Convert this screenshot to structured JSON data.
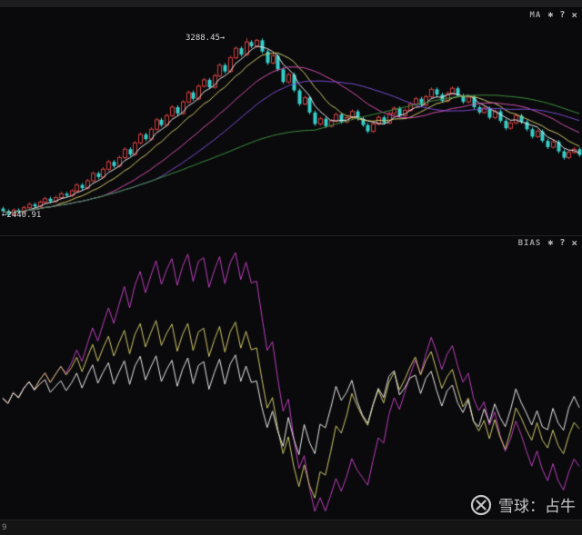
{
  "ma_panel": {
    "indicator_label": "MA",
    "gear_icon": "✱",
    "help_label": "?",
    "close_label": "×",
    "peak_label": "3288.45→",
    "low_label": "←2440.91"
  },
  "bias_panel": {
    "indicator_label": "BIAS",
    "gear_icon": "✱",
    "help_label": "?",
    "close_label": "×"
  },
  "watermark": {
    "text": "雪球：占牛"
  },
  "bottom_bar": {
    "axis_label": "9"
  },
  "colors": {
    "background": "#0a0a0c",
    "up_candle": "#cf4040",
    "down_candle": "#36cfc9",
    "header_text": "#9a9aa0",
    "label_text": "#d8d8d8"
  },
  "chart_data": [
    {
      "type": "candlestick",
      "title": "index price with moving averages",
      "ylim": [
        2420,
        3310
      ],
      "peak_annotation": 3288.45,
      "low_annotation": 2440.91,
      "up_color": "#cf4040",
      "down_color": "#36cfc9",
      "ma_periods": [
        5,
        10,
        20,
        30,
        60
      ],
      "ma_colors": [
        "#e8e8e8",
        "#cfc76a",
        "#d44fae",
        "#7c4bd0",
        "#3f8f3f"
      ],
      "ohlc": [
        [
          2478,
          2487,
          2456,
          2465
        ],
        [
          2465,
          2474,
          2440.91,
          2448
        ],
        [
          2448,
          2479,
          2441,
          2470
        ],
        [
          2470,
          2479,
          2453,
          2462
        ],
        [
          2462,
          2491,
          2455,
          2482
        ],
        [
          2482,
          2507,
          2475,
          2498
        ],
        [
          2498,
          2507,
          2479,
          2488
        ],
        [
          2488,
          2517,
          2481,
          2508
        ],
        [
          2508,
          2534,
          2501,
          2525
        ],
        [
          2525,
          2534,
          2503,
          2512
        ],
        [
          2512,
          2539,
          2505,
          2530
        ],
        [
          2530,
          2557,
          2523,
          2548
        ],
        [
          2548,
          2557,
          2531,
          2540
        ],
        [
          2540,
          2571,
          2533,
          2562
        ],
        [
          2562,
          2599,
          2555,
          2590
        ],
        [
          2590,
          2599,
          2566,
          2575
        ],
        [
          2575,
          2619,
          2568,
          2610
        ],
        [
          2610,
          2654,
          2603,
          2645
        ],
        [
          2645,
          2654,
          2619,
          2628
        ],
        [
          2628,
          2674,
          2621,
          2665
        ],
        [
          2665,
          2709,
          2658,
          2700
        ],
        [
          2700,
          2709,
          2671,
          2680
        ],
        [
          2680,
          2729,
          2673,
          2720
        ],
        [
          2720,
          2769,
          2713,
          2760
        ],
        [
          2760,
          2769,
          2726,
          2735
        ],
        [
          2735,
          2799,
          2728,
          2790
        ],
        [
          2790,
          2839,
          2783,
          2830
        ],
        [
          2830,
          2839,
          2799,
          2808
        ],
        [
          2808,
          2864,
          2801,
          2855
        ],
        [
          2855,
          2909,
          2848,
          2900
        ],
        [
          2900,
          2909,
          2866,
          2875
        ],
        [
          2875,
          2929,
          2868,
          2920
        ],
        [
          2920,
          2969,
          2913,
          2960
        ],
        [
          2960,
          2969,
          2921,
          2930
        ],
        [
          2930,
          2994,
          2923,
          2985
        ],
        [
          2985,
          3039,
          2978,
          3030
        ],
        [
          3030,
          3039,
          2991,
          3000
        ],
        [
          3000,
          3069,
          2993,
          3060
        ],
        [
          3060,
          3099,
          3053,
          3090
        ],
        [
          3090,
          3099,
          3046,
          3055
        ],
        [
          3055,
          3119,
          3048,
          3110
        ],
        [
          3110,
          3169,
          3103,
          3160
        ],
        [
          3160,
          3169,
          3121,
          3130
        ],
        [
          3130,
          3204,
          3123,
          3195
        ],
        [
          3195,
          3249,
          3188,
          3240
        ],
        [
          3240,
          3249,
          3201,
          3210
        ],
        [
          3210,
          3288.45,
          3203,
          3270
        ],
        [
          3270,
          3279,
          3241,
          3250
        ],
        [
          3250,
          3285,
          3243,
          3278
        ],
        [
          3278,
          3287,
          3216,
          3225
        ],
        [
          3225,
          3234,
          3161,
          3170
        ],
        [
          3170,
          3214,
          3163,
          3205
        ],
        [
          3205,
          3214,
          3131,
          3140
        ],
        [
          3140,
          3149,
          3071,
          3080
        ],
        [
          3080,
          3124,
          3073,
          3115
        ],
        [
          3115,
          3124,
          3031,
          3040
        ],
        [
          3040,
          3049,
          2966,
          2975
        ],
        [
          2975,
          3014,
          2968,
          3005
        ],
        [
          3005,
          3014,
          2926,
          2935
        ],
        [
          2935,
          2944,
          2871,
          2880
        ],
        [
          2880,
          2914,
          2873,
          2905
        ],
        [
          2905,
          2914,
          2861,
          2870
        ],
        [
          2870,
          2904,
          2863,
          2895
        ],
        [
          2895,
          2934,
          2888,
          2925
        ],
        [
          2925,
          2934,
          2881,
          2890
        ],
        [
          2890,
          2919,
          2883,
          2910
        ],
        [
          2910,
          2949,
          2903,
          2940
        ],
        [
          2940,
          2949,
          2896,
          2905
        ],
        [
          2905,
          2914,
          2866,
          2875
        ],
        [
          2875,
          2884,
          2836,
          2845
        ],
        [
          2845,
          2889,
          2838,
          2880
        ],
        [
          2880,
          2921,
          2873,
          2912
        ],
        [
          2912,
          2921,
          2876,
          2885
        ],
        [
          2885,
          2939,
          2878,
          2930
        ],
        [
          2930,
          2964,
          2923,
          2955
        ],
        [
          2955,
          2964,
          2911,
          2920
        ],
        [
          2920,
          2954,
          2913,
          2945
        ],
        [
          2945,
          2984,
          2938,
          2975
        ],
        [
          2975,
          3009,
          2968,
          3000
        ],
        [
          3000,
          3009,
          2961,
          2970
        ],
        [
          2970,
          3019,
          2963,
          3010
        ],
        [
          3010,
          3054,
          3003,
          3045
        ],
        [
          3045,
          3054,
          3011,
          3020
        ],
        [
          3020,
          3029,
          2981,
          2990
        ],
        [
          2990,
          3034,
          2983,
          3025
        ],
        [
          3025,
          3059,
          3018,
          3050
        ],
        [
          3050,
          3059,
          3006,
          3015
        ],
        [
          3015,
          3024,
          2976,
          2985
        ],
        [
          2985,
          3017,
          2978,
          3008
        ],
        [
          3008,
          3017,
          2951,
          2960
        ],
        [
          2960,
          2969,
          2926,
          2935
        ],
        [
          2935,
          2964,
          2928,
          2955
        ],
        [
          2955,
          2964,
          2901,
          2910
        ],
        [
          2910,
          2949,
          2903,
          2940
        ],
        [
          2940,
          2949,
          2886,
          2895
        ],
        [
          2895,
          2904,
          2851,
          2860
        ],
        [
          2860,
          2894,
          2853,
          2885
        ],
        [
          2885,
          2929,
          2878,
          2920
        ],
        [
          2920,
          2929,
          2881,
          2890
        ],
        [
          2890,
          2899,
          2846,
          2855
        ],
        [
          2855,
          2864,
          2811,
          2820
        ],
        [
          2820,
          2854,
          2813,
          2845
        ],
        [
          2845,
          2854,
          2791,
          2800
        ],
        [
          2800,
          2809,
          2761,
          2770
        ],
        [
          2770,
          2804,
          2763,
          2795
        ],
        [
          2795,
          2804,
          2741,
          2750
        ],
        [
          2750,
          2759,
          2711,
          2720
        ],
        [
          2720,
          2754,
          2713,
          2745
        ],
        [
          2745,
          2769,
          2738,
          2760
        ],
        [
          2760,
          2769,
          2724,
          2733
        ]
      ]
    },
    {
      "type": "line",
      "name": "BIAS",
      "note": "bias lines = (close - sma(close,p)) / sma(close,p) * 100, computed from the candlestick closes above",
      "periods": [
        6,
        12,
        24
      ],
      "colors": [
        "#e6e6e6",
        "#cfc76a",
        "#bb3fbb"
      ]
    }
  ]
}
